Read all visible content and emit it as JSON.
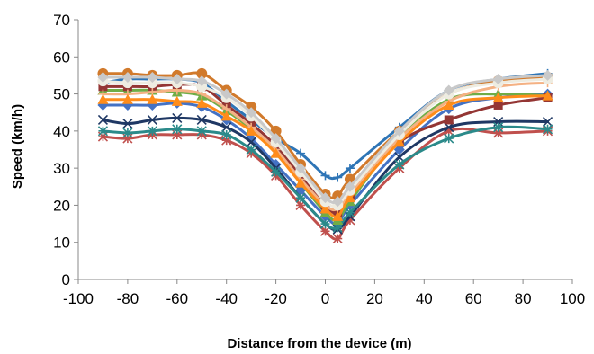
{
  "chart_data": {
    "type": "line",
    "title": "",
    "xlabel": "Distance from the device (m)",
    "ylabel": "Speed (km/h)",
    "xlim": [
      -100,
      100
    ],
    "ylim": [
      0,
      70
    ],
    "xticks": [
      "-100",
      "-80",
      "-60",
      "-40",
      "-20",
      "0",
      "20",
      "40",
      "60",
      "80",
      "100"
    ],
    "yticks": [
      "0",
      "10",
      "20",
      "30",
      "40",
      "50",
      "60",
      "70"
    ],
    "grid": false,
    "legend": "none",
    "x": [
      -90,
      -80,
      -70,
      -60,
      -50,
      -40,
      -30,
      -20,
      -10,
      0,
      5,
      10,
      30,
      50,
      70,
      90
    ],
    "series": [
      {
        "color": "#C0504D",
        "marker": "asterisk",
        "values": [
          38.5,
          38,
          39,
          39,
          39,
          37.5,
          34,
          28,
          20,
          13,
          11,
          16,
          30,
          40,
          39.5,
          40
        ]
      },
      {
        "color": "#2E75B6",
        "marker": "plus",
        "values": [
          53,
          54,
          54,
          54,
          53,
          48,
          43,
          38,
          34,
          28,
          27.5,
          30,
          41,
          51,
          54,
          55.5
        ]
      },
      {
        "color": "#D17A2C",
        "marker": "circle",
        "values": [
          55.5,
          55.5,
          55,
          55,
          55.5,
          51,
          46.5,
          40,
          31,
          23,
          22.5,
          27,
          40,
          50,
          53.5,
          54.5
        ]
      },
      {
        "color": "#4472C4",
        "marker": "diamond",
        "values": [
          47,
          47,
          47,
          47.5,
          46.5,
          43,
          38,
          31,
          24,
          17,
          15,
          20,
          35,
          46,
          49,
          50
        ]
      },
      {
        "color": "#1F3864",
        "marker": "x",
        "values": [
          43,
          42,
          43,
          43.5,
          43,
          41,
          37,
          30,
          22,
          15,
          13.5,
          17,
          33,
          41,
          42.5,
          42.5
        ]
      },
      {
        "color": "#2B8A8A",
        "marker": "asterisk",
        "values": [
          40,
          39.5,
          40,
          40.5,
          40,
          39,
          35,
          29,
          22,
          15,
          14,
          18,
          31,
          38,
          41,
          40.5
        ]
      },
      {
        "color": "#70AD47",
        "marker": "triangle",
        "values": [
          51,
          51,
          51,
          50.5,
          49.5,
          45.5,
          40.5,
          34,
          26,
          18,
          16,
          21,
          38,
          48.5,
          50,
          49.5
        ]
      },
      {
        "color": "#943634",
        "marker": "square",
        "values": [
          52,
          52,
          52,
          52.5,
          52,
          47,
          42,
          36,
          28,
          20,
          18,
          23,
          37,
          43,
          47,
          49
        ]
      },
      {
        "color": "#F4B183",
        "marker": "plus",
        "values": [
          50,
          50,
          50.5,
          51,
          50,
          46,
          41,
          35,
          27,
          20,
          19,
          23,
          38,
          48,
          52,
          53
        ]
      },
      {
        "color": "#FF8C1A",
        "marker": "triangle",
        "values": [
          48.5,
          48.5,
          48.5,
          48,
          47.5,
          44,
          40,
          34,
          26,
          19,
          17,
          22,
          37,
          47,
          49,
          49.5
        ]
      },
      {
        "color": "#EEECE1",
        "marker": "circle",
        "values": [
          53.5,
          53,
          53,
          53,
          52,
          49,
          44,
          37,
          29,
          21,
          20,
          24,
          39,
          50,
          53,
          54
        ]
      },
      {
        "color": "#C9C9C9",
        "marker": "diamond",
        "values": [
          54.5,
          54.5,
          54.5,
          54,
          53.5,
          50,
          45,
          38,
          30,
          22,
          21,
          25,
          40,
          51,
          54,
          55
        ]
      }
    ]
  }
}
